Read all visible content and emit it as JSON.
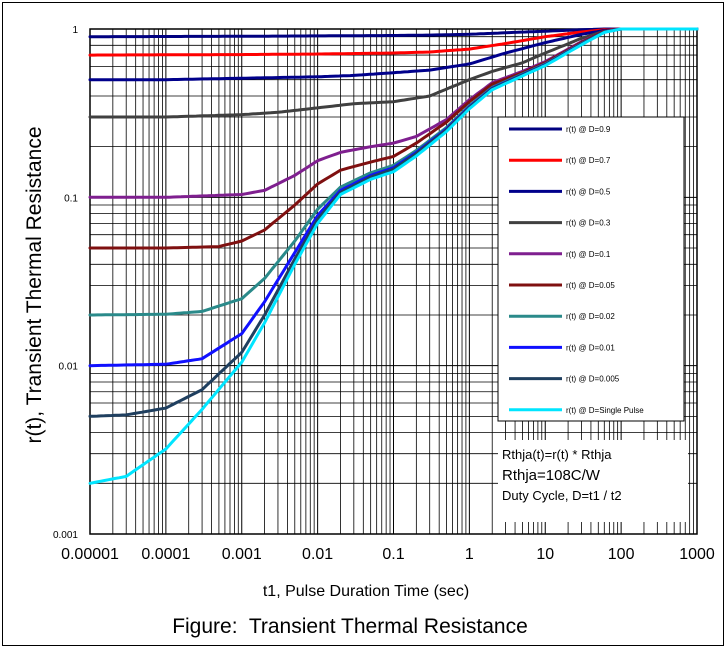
{
  "chart_data": {
    "type": "line",
    "title": "Figure:  Transient Thermal Resistance",
    "xlabel": "t1, Pulse Duration Time (sec)",
    "ylabel": "r(t), Transient Thermal Resistance",
    "xscale": "log",
    "yscale": "log",
    "xlim": [
      1e-05,
      1000
    ],
    "ylim": [
      0.001,
      1
    ],
    "xticks": [
      "0.00001",
      "0.0001",
      "0.001",
      "0.01",
      "0.1",
      "1",
      "10",
      "100",
      "1000"
    ],
    "yticks": [
      "0.001",
      "0.01",
      "0.1",
      "1"
    ],
    "grid": true,
    "legend_position": "right",
    "annotation": [
      "Rthja(t)=r(t) * Rthja",
      "Rthja=108C/W",
      "Duty Cycle, D=t1 /  t2"
    ],
    "series": [
      {
        "name": "r(t) @ D=0.9",
        "color": "#000080",
        "x": [
          1e-05,
          0.001,
          0.01,
          0.1,
          0.3,
          1,
          3,
          10,
          30,
          60,
          100,
          1000
        ],
        "y": [
          0.9,
          0.905,
          0.91,
          0.915,
          0.92,
          0.93,
          0.95,
          0.97,
          0.99,
          1,
          1,
          1
        ]
      },
      {
        "name": "r(t) @ D=0.7",
        "color": "#ff0000",
        "x": [
          1e-05,
          0.001,
          0.01,
          0.1,
          0.3,
          1,
          3,
          10,
          30,
          60,
          100,
          1000
        ],
        "y": [
          0.7,
          0.705,
          0.71,
          0.72,
          0.73,
          0.76,
          0.82,
          0.9,
          0.96,
          0.99,
          1,
          1
        ]
      },
      {
        "name": "r(t) @ D=0.5",
        "color": "#00008b",
        "x": [
          1e-05,
          0.0001,
          0.001,
          0.01,
          0.03,
          0.1,
          0.3,
          1,
          3,
          10,
          30,
          60,
          100,
          1000
        ],
        "y": [
          0.5,
          0.5,
          0.51,
          0.52,
          0.53,
          0.55,
          0.57,
          0.62,
          0.72,
          0.83,
          0.93,
          0.98,
          1,
          1
        ]
      },
      {
        "name": "r(t) @ D=0.3",
        "color": "#404040",
        "x": [
          1e-05,
          0.0001,
          0.001,
          0.003,
          0.01,
          0.03,
          0.1,
          0.3,
          1,
          2,
          5,
          10,
          30,
          60,
          100,
          1000
        ],
        "y": [
          0.3,
          0.3,
          0.31,
          0.32,
          0.34,
          0.36,
          0.37,
          0.4,
          0.5,
          0.56,
          0.63,
          0.72,
          0.88,
          0.97,
          1,
          1
        ]
      },
      {
        "name": "r(t) @ D=0.1",
        "color": "#7f1f8f",
        "x": [
          1e-05,
          0.0001,
          0.001,
          0.002,
          0.005,
          0.01,
          0.02,
          0.05,
          0.1,
          0.2,
          0.5,
          1,
          2,
          5,
          10,
          30,
          60,
          100,
          1000
        ],
        "y": [
          0.1,
          0.1,
          0.104,
          0.11,
          0.135,
          0.165,
          0.185,
          0.2,
          0.21,
          0.23,
          0.29,
          0.38,
          0.48,
          0.56,
          0.64,
          0.84,
          0.97,
          1,
          1
        ]
      },
      {
        "name": "r(t) @ D=0.05",
        "color": "#7f1010",
        "x": [
          1e-05,
          0.0001,
          0.0005,
          0.001,
          0.002,
          0.005,
          0.01,
          0.02,
          0.05,
          0.1,
          0.2,
          0.5,
          1,
          2,
          5,
          10,
          30,
          60,
          100,
          1000
        ],
        "y": [
          0.05,
          0.05,
          0.051,
          0.055,
          0.064,
          0.09,
          0.12,
          0.145,
          0.162,
          0.175,
          0.21,
          0.28,
          0.37,
          0.47,
          0.55,
          0.63,
          0.83,
          0.97,
          1,
          1
        ]
      },
      {
        "name": "r(t) @ D=0.02",
        "color": "#2a8a8a",
        "x": [
          1e-05,
          0.0001,
          0.0003,
          0.001,
          0.002,
          0.005,
          0.01,
          0.02,
          0.05,
          0.1,
          0.2,
          0.5,
          1,
          2,
          5,
          10,
          30,
          60,
          100,
          1000
        ],
        "y": [
          0.02,
          0.0202,
          0.021,
          0.025,
          0.033,
          0.055,
          0.085,
          0.115,
          0.14,
          0.155,
          0.19,
          0.26,
          0.35,
          0.45,
          0.54,
          0.62,
          0.82,
          0.96,
          1,
          1
        ]
      },
      {
        "name": "r(t) @ D=0.01",
        "color": "#1010ff",
        "x": [
          1e-05,
          0.0001,
          0.0003,
          0.001,
          0.002,
          0.005,
          0.01,
          0.02,
          0.05,
          0.1,
          0.2,
          0.5,
          1,
          2,
          5,
          10,
          30,
          60,
          100,
          1000
        ],
        "y": [
          0.01,
          0.0102,
          0.011,
          0.0155,
          0.024,
          0.047,
          0.078,
          0.11,
          0.135,
          0.15,
          0.185,
          0.255,
          0.345,
          0.445,
          0.535,
          0.615,
          0.815,
          0.96,
          1,
          1
        ]
      },
      {
        "name": "r(t) @ D=0.005",
        "color": "#1f3f5f",
        "x": [
          1e-05,
          3e-05,
          0.0001,
          0.0003,
          0.001,
          0.002,
          0.005,
          0.01,
          0.02,
          0.05,
          0.1,
          0.2,
          0.5,
          1,
          2,
          5,
          10,
          30,
          60,
          100,
          1000
        ],
        "y": [
          0.005,
          0.0051,
          0.0056,
          0.0072,
          0.012,
          0.02,
          0.043,
          0.074,
          0.107,
          0.132,
          0.147,
          0.182,
          0.252,
          0.342,
          0.442,
          0.532,
          0.612,
          0.812,
          0.96,
          1,
          1
        ]
      },
      {
        "name": "r(t) @ D=Single Pulse",
        "color": "#00e5ff",
        "x": [
          1e-05,
          3e-05,
          0.0001,
          0.0003,
          0.001,
          0.002,
          0.005,
          0.01,
          0.02,
          0.05,
          0.1,
          0.2,
          0.5,
          1,
          2,
          5,
          10,
          30,
          60,
          100,
          1000
        ],
        "y": [
          0.002,
          0.0022,
          0.0032,
          0.0055,
          0.0105,
          0.018,
          0.04,
          0.07,
          0.104,
          0.128,
          0.142,
          0.176,
          0.246,
          0.336,
          0.436,
          0.526,
          0.606,
          0.806,
          0.955,
          1,
          1
        ]
      }
    ]
  }
}
